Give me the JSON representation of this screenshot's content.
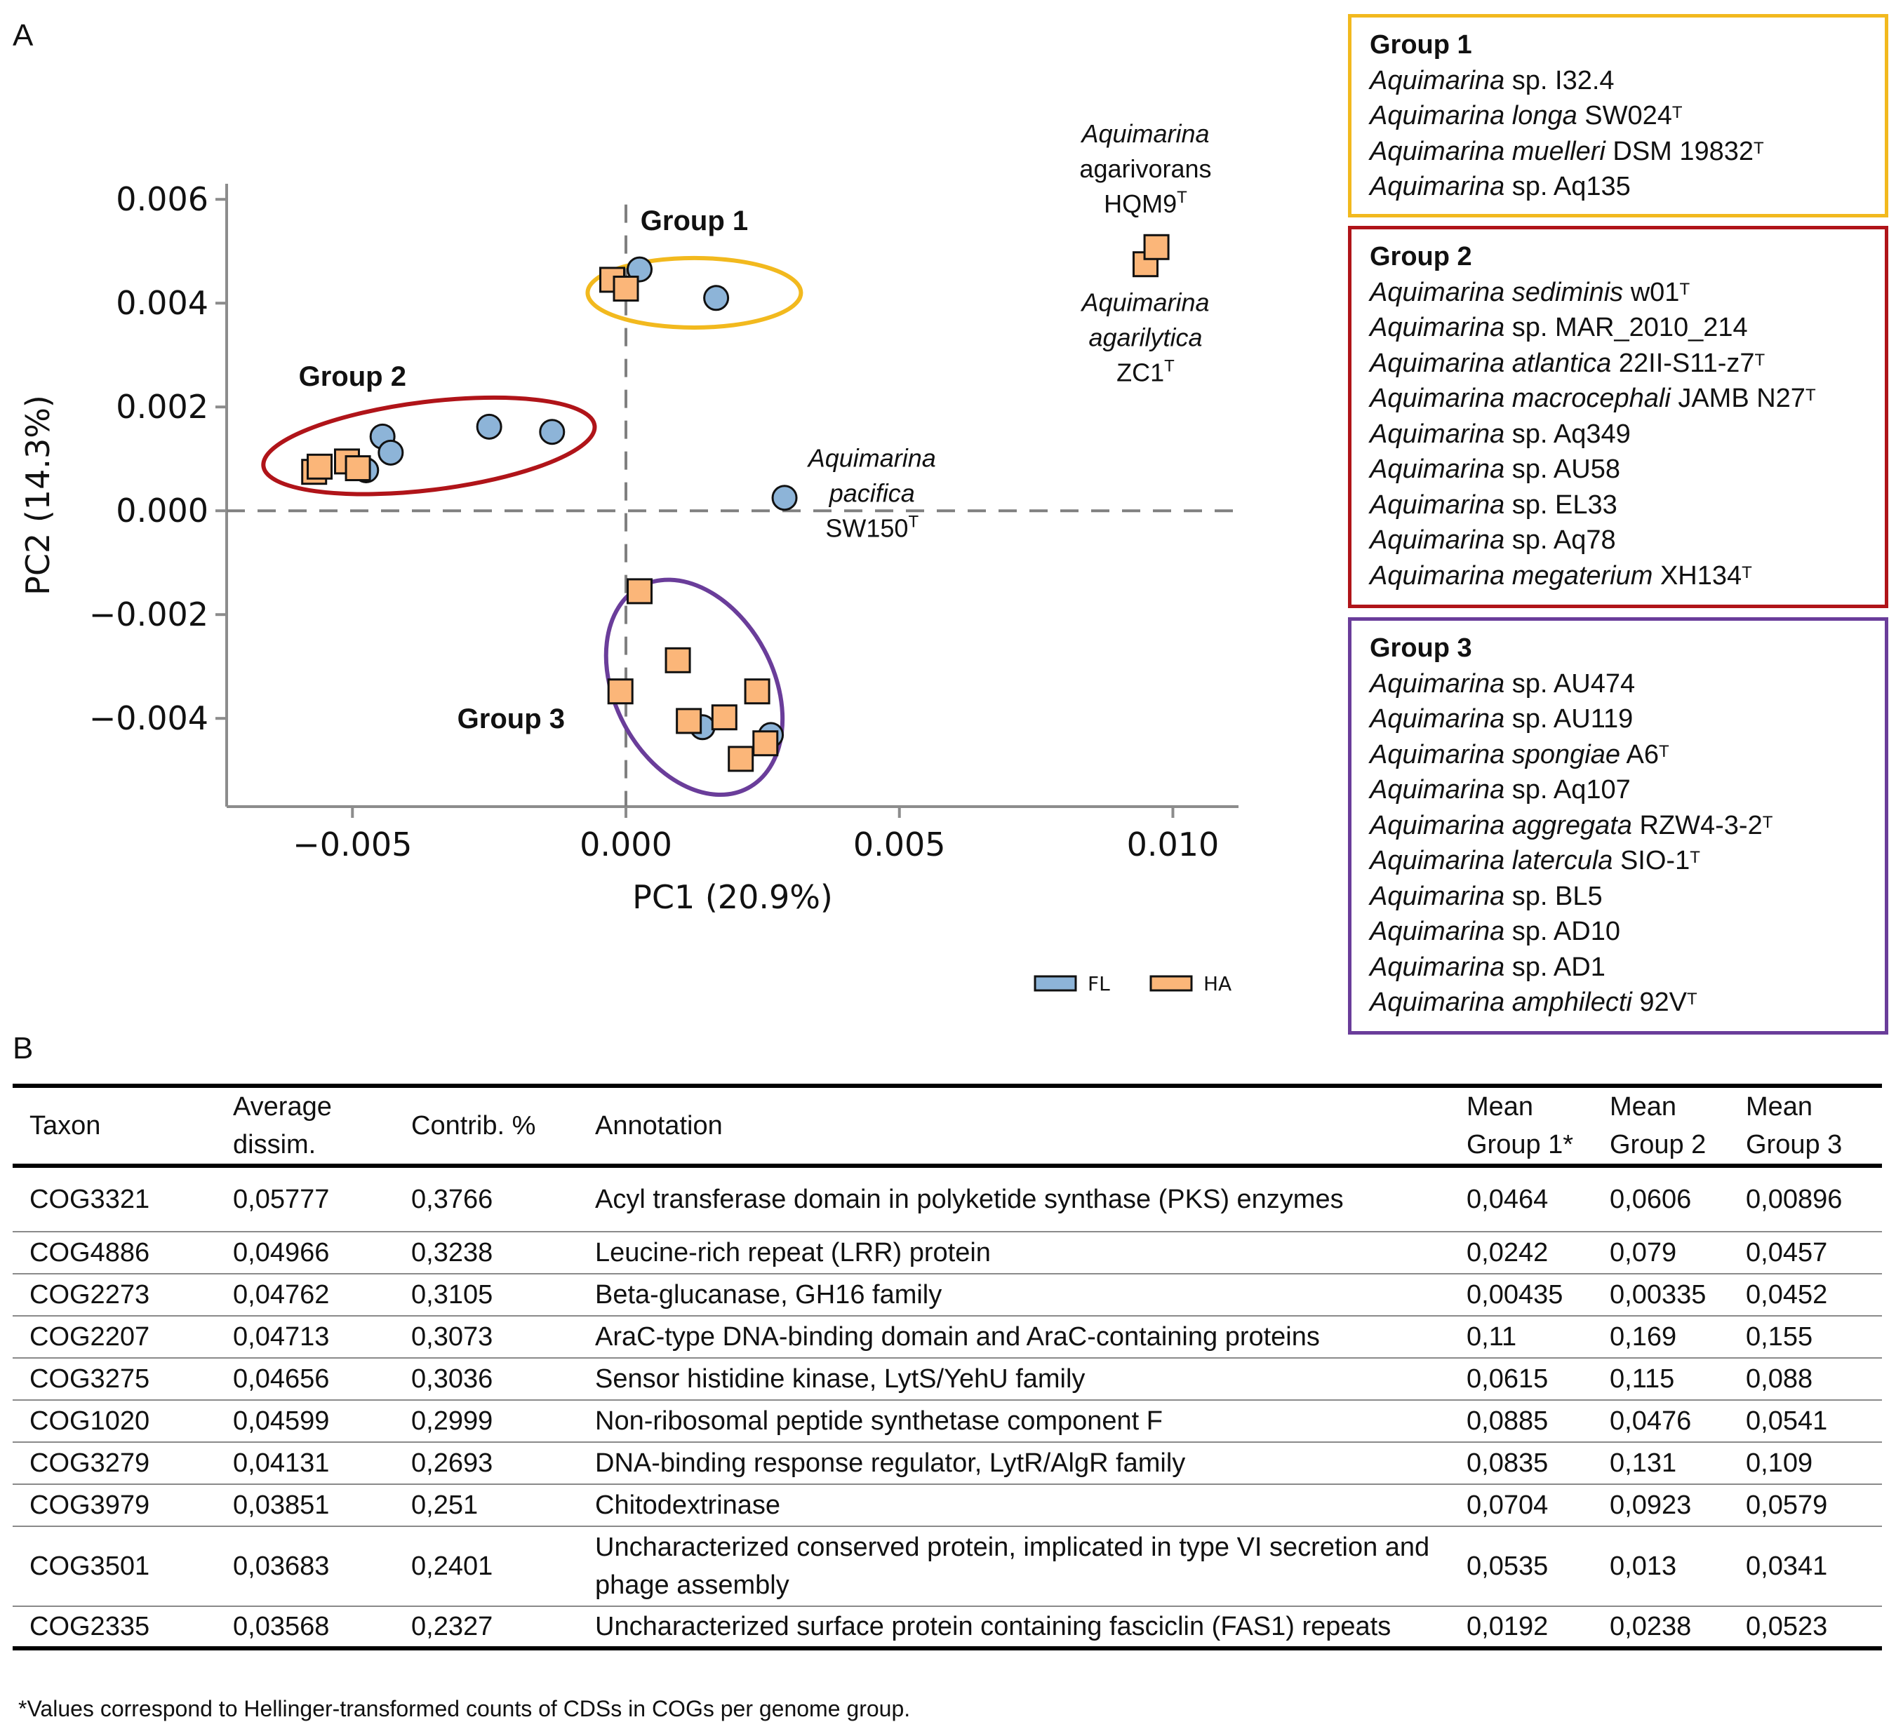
{
  "panel_a_label": "A",
  "panel_b_label": "B",
  "chart_data": {
    "type": "scatter",
    "xlabel": "PC1 (20.9%)",
    "ylabel": "PC2 (14.3%)",
    "xlim": [
      -0.0073,
      0.0112
    ],
    "ylim": [
      -0.0057,
      0.0063
    ],
    "xticks": [
      -0.005,
      0.0,
      0.005,
      0.01
    ],
    "xtick_labels": [
      "−0.005",
      "0.000",
      "0.005",
      "0.010"
    ],
    "yticks": [
      -0.004,
      -0.002,
      0.0,
      0.002,
      0.004,
      0.006
    ],
    "ytick_labels": [
      "−0.004",
      "−0.002",
      "0.000",
      "0.002",
      "0.004",
      "0.006"
    ],
    "zero_lines": true,
    "series": [
      {
        "name": "FL",
        "marker": "circle",
        "color": "#8db4d8",
        "points": [
          [
            0.00025,
            0.00465
          ],
          [
            0.00165,
            0.0041
          ],
          [
            -0.00445,
            0.00143
          ],
          [
            -0.0043,
            0.00112
          ],
          [
            -0.00475,
            0.00078
          ],
          [
            -0.0025,
            0.00162
          ],
          [
            -0.00135,
            0.00152
          ],
          [
            0.0029,
            0.00025
          ],
          [
            0.0014,
            -0.00417
          ],
          [
            0.00265,
            -0.00432
          ]
        ]
      },
      {
        "name": "HA",
        "marker": "square",
        "color": "#fbb679",
        "points": [
          [
            -0.00025,
            0.00445
          ],
          [
            0.0,
            0.00428
          ],
          [
            0.0095,
            0.00475
          ],
          [
            0.0097,
            0.00508
          ],
          [
            -0.0057,
            0.00075
          ],
          [
            -0.0056,
            0.00085
          ],
          [
            -0.0051,
            0.00095
          ],
          [
            -0.0049,
            0.00082
          ],
          [
            0.00025,
            -0.00155
          ],
          [
            0.00095,
            -0.00288
          ],
          [
            -0.0001,
            -0.00348
          ],
          [
            0.0024,
            -0.00348
          ],
          [
            0.00115,
            -0.00405
          ],
          [
            0.0018,
            -0.00398
          ],
          [
            0.00255,
            -0.00448
          ],
          [
            0.0021,
            -0.00478
          ]
        ]
      }
    ],
    "group_ellipses": [
      {
        "name": "Group 1",
        "color": "#f2b91e",
        "cx": 0.00125,
        "cy": 0.0042,
        "rx": 0.00195,
        "ry": 0.00067,
        "angle": 0
      },
      {
        "name": "Group 2",
        "color": "#b01419",
        "cx": -0.0036,
        "cy": 0.00125,
        "rx": 0.00305,
        "ry": 0.00085,
        "angle": -7
      },
      {
        "name": "Group 3",
        "color": "#6a3d9a",
        "cx": 0.00125,
        "cy": -0.0034,
        "rx": 0.00145,
        "ry": 0.0022,
        "angle": -28
      }
    ],
    "group_labels": [
      {
        "text": "Group 1",
        "x": 0.00125,
        "y": 0.0056
      },
      {
        "text": "Group 2",
        "x": -0.005,
        "y": 0.0026
      },
      {
        "text": "Group 3",
        "x": -0.0021,
        "y": -0.004
      }
    ],
    "point_annotations": [
      {
        "lines": [
          [
            "Aquimarina",
            true
          ],
          [
            "agarivorans",
            false
          ],
          [
            "HQM9",
            false,
            "T"
          ]
        ],
        "x": 0.0095,
        "y_top": 0.0071
      },
      {
        "lines": [
          [
            "Aquimarina",
            true
          ],
          [
            "agarilytica",
            true
          ],
          [
            "ZC1",
            false,
            "T"
          ]
        ],
        "x": 0.0095,
        "y_top": 0.00385
      },
      {
        "lines": [
          [
            "Aquimarina",
            true
          ],
          [
            "pacifica",
            true
          ],
          [
            "SW150",
            false,
            "T"
          ]
        ],
        "x": 0.0045,
        "y_top": 0.00085
      }
    ],
    "legend": {
      "position": "bottom-right",
      "entries": [
        "FL",
        "HA"
      ]
    }
  },
  "groups": [
    {
      "title": "Group 1",
      "color": "#f2b91e",
      "members": [
        {
          "genus": "Aquimarina",
          "epithet": "sp.",
          "strain": "I32.4",
          "type": ""
        },
        {
          "genus": "Aquimarina",
          "epithet": "longa",
          "strain": "SW024",
          "type": "T"
        },
        {
          "genus": "Aquimarina",
          "epithet": "muelleri",
          "strain": "DSM 19832",
          "type": "T"
        },
        {
          "genus": "Aquimarina",
          "epithet": "sp.",
          "strain": "Aq135",
          "type": ""
        }
      ]
    },
    {
      "title": "Group 2",
      "color": "#b01419",
      "members": [
        {
          "genus": "Aquimarina",
          "epithet": "sediminis",
          "strain": "w01",
          "type": "T"
        },
        {
          "genus": "Aquimarina",
          "epithet": "sp.",
          "strain": "MAR_2010_214",
          "type": ""
        },
        {
          "genus": "Aquimarina",
          "epithet": "atlantica",
          "strain": "22II-S11-z7",
          "type": "T"
        },
        {
          "genus": "Aquimarina",
          "epithet": "macrocephali",
          "strain": "JAMB N27",
          "type": "T"
        },
        {
          "genus": "Aquimarina",
          "epithet": "sp.",
          "strain": "Aq349",
          "type": ""
        },
        {
          "genus": "Aquimarina",
          "epithet": "sp.",
          "strain": "AU58",
          "type": ""
        },
        {
          "genus": "Aquimarina",
          "epithet": "sp.",
          "strain": "EL33",
          "type": ""
        },
        {
          "genus": "Aquimarina",
          "epithet": "sp.",
          "strain": "Aq78",
          "type": ""
        },
        {
          "genus": "Aquimarina",
          "epithet": "megaterium",
          "strain": "XH134",
          "type": "T"
        }
      ]
    },
    {
      "title": "Group 3",
      "color": "#6a3d9a",
      "members": [
        {
          "genus": "Aquimarina",
          "epithet": "sp.",
          "strain": "AU474",
          "type": ""
        },
        {
          "genus": "Aquimarina",
          "epithet": "sp.",
          "strain": "AU119",
          "type": ""
        },
        {
          "genus": "Aquimarina",
          "epithet": "spongiae",
          "strain": "A6",
          "type": "T"
        },
        {
          "genus": "Aquimarina",
          "epithet": "sp.",
          "strain": "Aq107",
          "type": ""
        },
        {
          "genus": "Aquimarina",
          "epithet": "aggregata",
          "strain": "RZW4-3-2",
          "type": "T"
        },
        {
          "genus": "Aquimarina",
          "epithet": "latercula",
          "strain": "SIO-1",
          "type": "T"
        },
        {
          "genus": "Aquimarina",
          "epithet": "sp.",
          "strain": "BL5",
          "type": ""
        },
        {
          "genus": "Aquimarina",
          "epithet": "sp.",
          "strain": "AD10",
          "type": ""
        },
        {
          "genus": "Aquimarina",
          "epithet": "sp.",
          "strain": "AD1",
          "type": ""
        },
        {
          "genus": "Aquimarina",
          "epithet": "amphilecti",
          "strain": "92V",
          "type": "T"
        }
      ]
    }
  ],
  "table": {
    "headers": [
      "Taxon",
      "Average dissim.",
      "Contrib. %",
      "Annotation",
      "Mean Group 1*",
      "Mean Group 2",
      "Mean Group 3"
    ],
    "rows": [
      [
        "COG3321",
        "0,05777",
        "0,3766",
        "Acyl transferase domain in polyketide synthase (PKS) enzymes",
        "0,0464",
        "0,0606",
        "0,00896"
      ],
      [
        "COG4886",
        "0,04966",
        "0,3238",
        "Leucine-rich repeat (LRR) protein",
        "0,0242",
        "0,079",
        "0,0457"
      ],
      [
        "COG2273",
        "0,04762",
        "0,3105",
        "Beta-glucanase, GH16 family",
        "0,00435",
        "0,00335",
        "0,0452"
      ],
      [
        "COG2207",
        "0,04713",
        "0,3073",
        "AraC-type DNA-binding domain and AraC-containing proteins",
        "0,11",
        "0,169",
        "0,155"
      ],
      [
        "COG3275",
        "0,04656",
        "0,3036",
        "Sensor histidine kinase, LytS/YehU family",
        "0,0615",
        "0,115",
        "0,088"
      ],
      [
        "COG1020",
        "0,04599",
        "0,2999",
        "Non-ribosomal peptide synthetase component F",
        "0,0885",
        "0,0476",
        "0,0541"
      ],
      [
        "COG3279",
        "0,04131",
        "0,2693",
        "DNA-binding response regulator, LytR/AlgR family",
        "0,0835",
        "0,131",
        "0,109"
      ],
      [
        "COG3979",
        "0,03851",
        "0,251",
        "Chitodextrinase",
        "0,0704",
        "0,0923",
        "0,0579"
      ],
      [
        "COG3501",
        "0,03683",
        "0,2401",
        "Uncharacterized conserved protein, implicated in type VI secretion and phage assembly",
        "0,0535",
        "0,013",
        "0,0341"
      ],
      [
        "COG2335",
        "0,03568",
        "0,2327",
        "Uncharacterized surface protein containing fasciclin (FAS1) repeats",
        "0,0192",
        "0,0238",
        "0,0523"
      ]
    ],
    "footnote": "*Values correspond to Hellinger-transformed counts of CDSs in COGs per genome group."
  }
}
